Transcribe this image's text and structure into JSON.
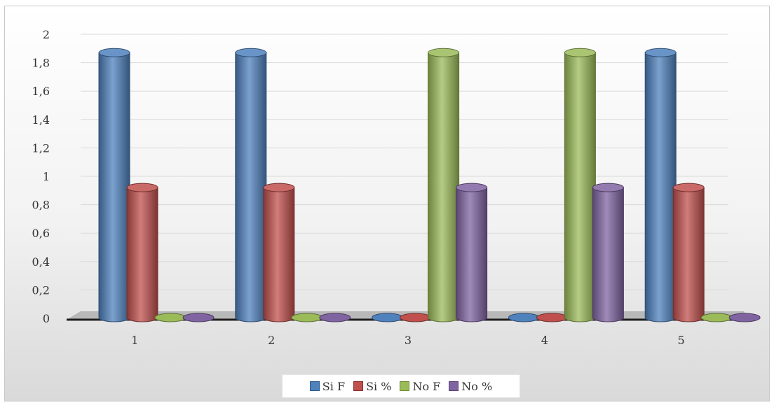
{
  "chart_data": {
    "type": "bar",
    "style": "3d-cylinder",
    "categories": [
      "1",
      "2",
      "3",
      "4",
      "5"
    ],
    "series": [
      {
        "name": "Si F",
        "color": "#4F81BD",
        "values": [
          1.9,
          1.9,
          0,
          0,
          1.9
        ]
      },
      {
        "name": "Si %",
        "color": "#C0504D",
        "values": [
          0.95,
          0.95,
          0,
          0,
          0.95
        ]
      },
      {
        "name": "No F",
        "color": "#9BBB59",
        "values": [
          0,
          0,
          1.9,
          1.9,
          0
        ]
      },
      {
        "name": "No %",
        "color": "#8064A2",
        "values": [
          0,
          0,
          0.95,
          0.95,
          0
        ]
      }
    ],
    "y_ticks": [
      "0",
      "0,2",
      "0,4",
      "0,6",
      "0,8",
      "1",
      "1,2",
      "1,4",
      "1,6",
      "1,8",
      "2"
    ],
    "ylim": [
      0,
      2
    ],
    "grid": true,
    "legend_position": "bottom"
  }
}
